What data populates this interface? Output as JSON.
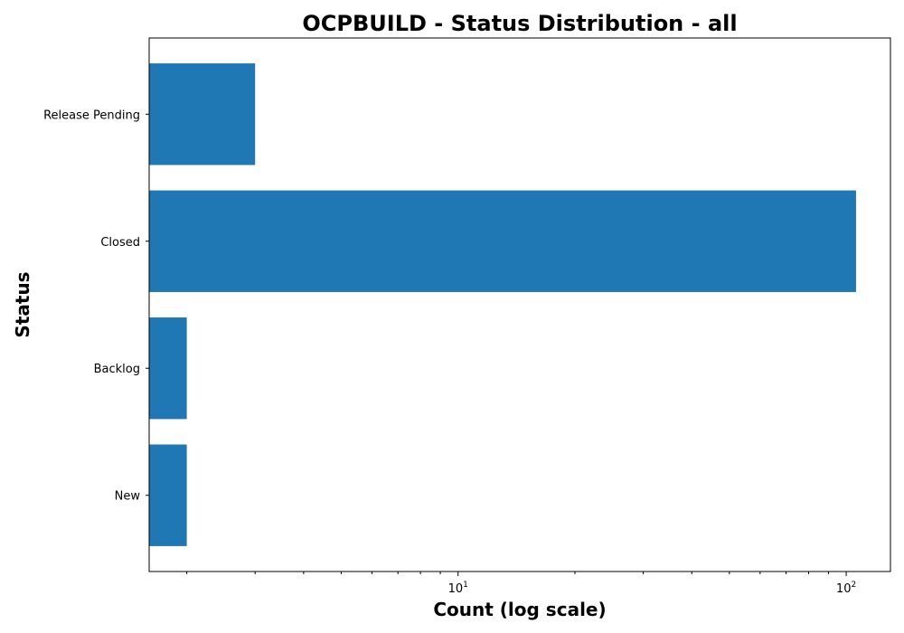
{
  "chart_data": {
    "type": "bar",
    "orientation": "horizontal",
    "title": "OCPBUILD - Status Distribution - all",
    "xlabel": "Count (log scale)",
    "ylabel": "Status",
    "x_scale": "log",
    "xlim": [
      1.6,
      130
    ],
    "x_ticks": [
      {
        "base": "10",
        "exp": "1",
        "value": 10
      },
      {
        "base": "10",
        "exp": "2",
        "value": 100
      }
    ],
    "categories": [
      "New",
      "Backlog",
      "Closed",
      "Release Pending"
    ],
    "values": [
      2,
      2,
      106,
      3
    ],
    "bar_color": "#1f77b4",
    "grid": false,
    "legend": "none"
  }
}
